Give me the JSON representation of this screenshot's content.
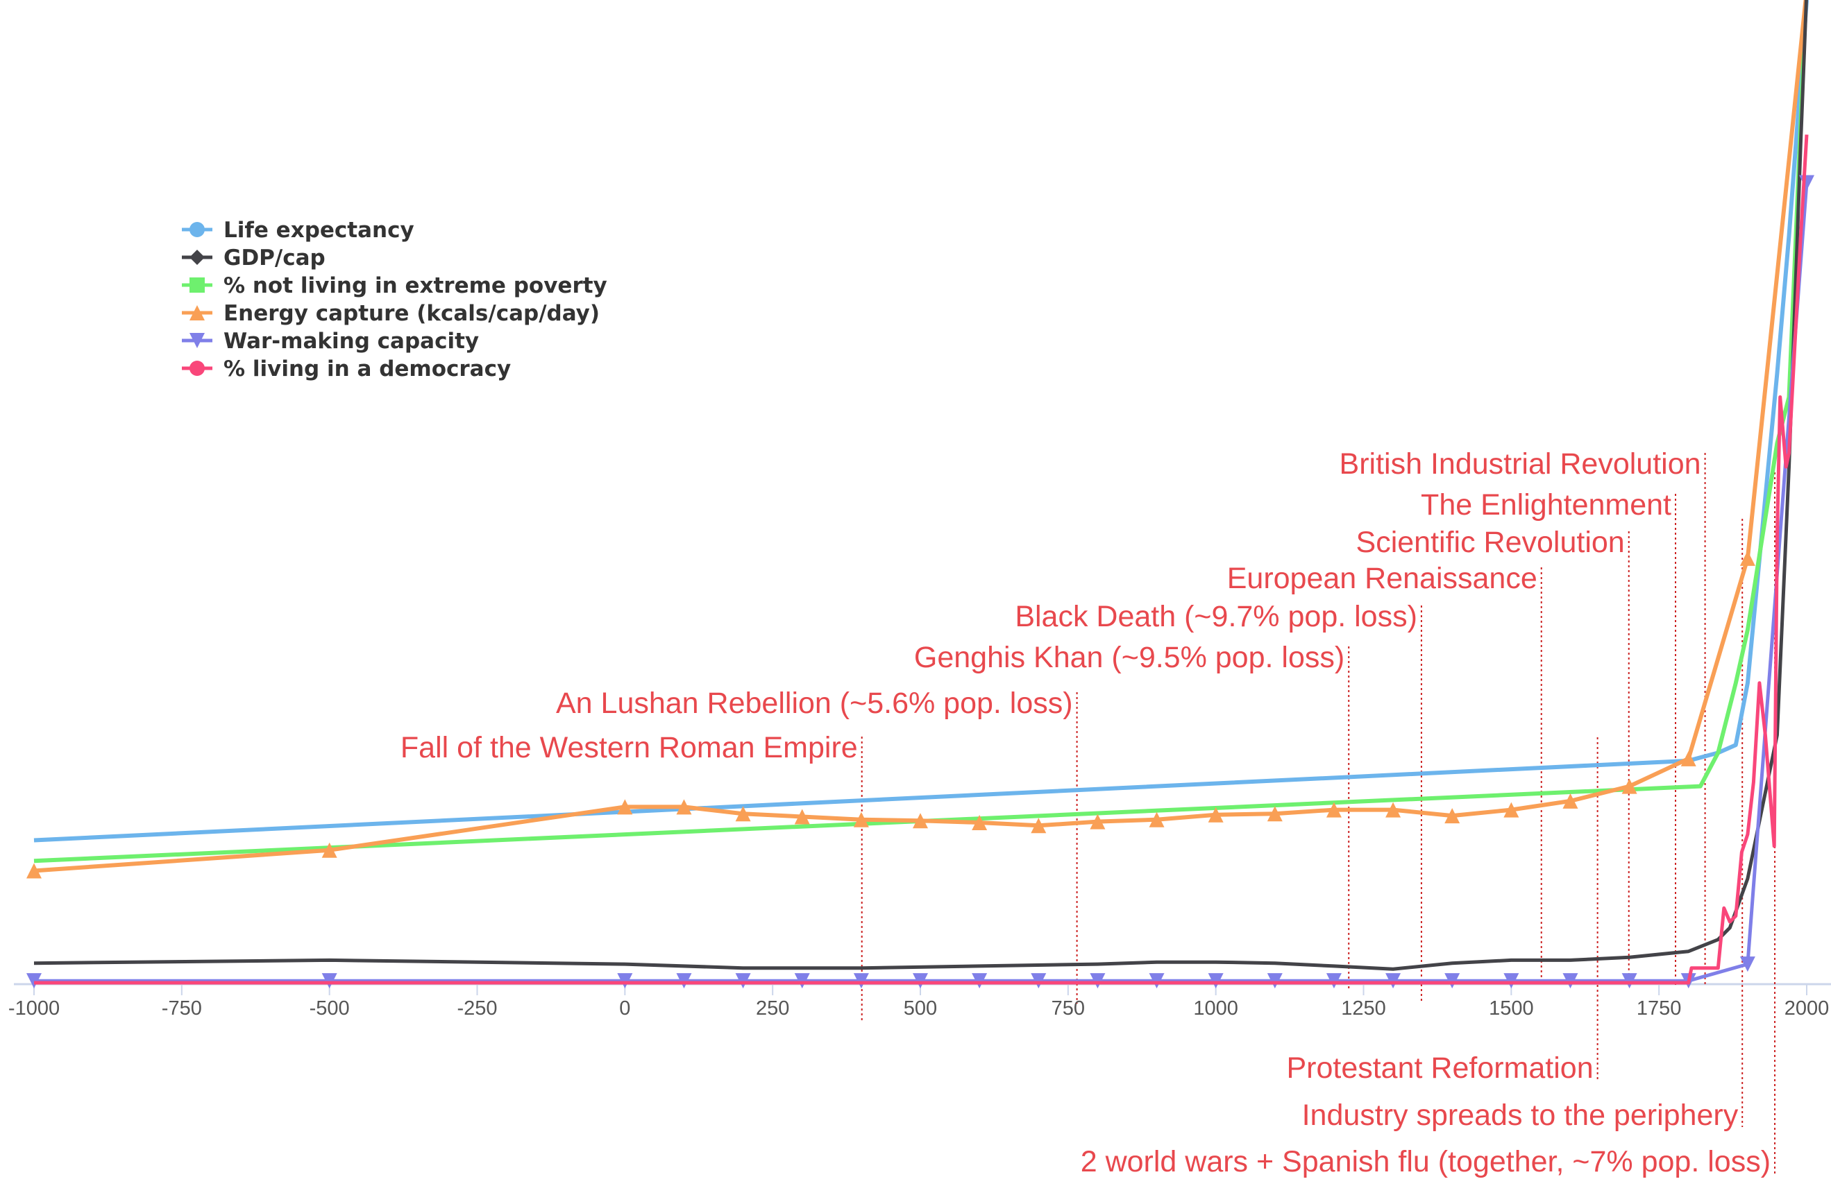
{
  "chart_data": {
    "type": "line",
    "title": "",
    "xlabel": "",
    "ylabel": "",
    "xlim": [
      -1000,
      2000
    ],
    "x_ticks": [
      -1000,
      -750,
      -500,
      -250,
      0,
      250,
      500,
      750,
      1000,
      1250,
      1500,
      1750,
      2000
    ],
    "y_scale_note": "relative, unlabeled",
    "ylim": [
      0,
      100
    ],
    "grid": false,
    "legend_position": "top-left",
    "series": [
      {
        "name": "Life expectancy",
        "color": "#6cb4ec",
        "marker": "circle",
        "x": [
          -1000,
          1800,
          1850,
          1880,
          1900,
          1950,
          1970,
          2000
        ],
        "y": [
          14.5,
          22.6,
          23.4,
          24.2,
          30.5,
          62,
          76,
          100
        ]
      },
      {
        "name": "GDP/cap",
        "color": "#434348",
        "marker": "diamond",
        "x": [
          -1000,
          -500,
          0,
          200,
          400,
          600,
          800,
          900,
          1000,
          1100,
          1200,
          1300,
          1400,
          1500,
          1600,
          1700,
          1800,
          1850,
          1870,
          1900,
          1950,
          1970,
          1990,
          2000
        ],
        "y": [
          2.0,
          2.3,
          1.9,
          1.5,
          1.5,
          1.7,
          1.9,
          2.1,
          2.1,
          2.0,
          1.7,
          1.4,
          2.0,
          2.3,
          2.3,
          2.6,
          3.2,
          4.4,
          5.6,
          10.6,
          25.2,
          52.5,
          85.7,
          101
        ]
      },
      {
        "name": "% not living in extreme poverty",
        "color": "#6ef06e",
        "marker": "square",
        "x": [
          -1000,
          1820,
          1850,
          1880,
          1900,
          1950,
          1970,
          1995
        ],
        "y": [
          12.4,
          20,
          23.4,
          30.5,
          35.9,
          54.9,
          59.6,
          94.7
        ]
      },
      {
        "name": "Energy capture (kcals/cap/day)",
        "color": "#f99f55",
        "marker": "triangle",
        "x": [
          -1000,
          -500,
          0,
          100,
          200,
          300,
          400,
          500,
          600,
          700,
          800,
          900,
          1000,
          1100,
          1200,
          1300,
          1400,
          1500,
          1600,
          1700,
          1800,
          1900,
          2000
        ],
        "y": [
          11.4,
          13.5,
          17.9,
          17.9,
          17.2,
          16.9,
          16.6,
          16.5,
          16.3,
          16.0,
          16.4,
          16.6,
          17.1,
          17.2,
          17.6,
          17.6,
          17.0,
          17.6,
          18.5,
          20.0,
          22.8,
          43.2,
          101
        ]
      },
      {
        "name": "War-making capacity",
        "color": "#7f7fe8",
        "marker": "triangle-down",
        "x": [
          -1000,
          -500,
          0,
          100,
          200,
          300,
          400,
          500,
          600,
          700,
          800,
          900,
          1000,
          1100,
          1200,
          1300,
          1400,
          1500,
          1600,
          1700,
          1800,
          1900,
          2000
        ],
        "y": [
          0.2,
          0.2,
          0.2,
          0.2,
          0.2,
          0.2,
          0.2,
          0.2,
          0.2,
          0.2,
          0.2,
          0.2,
          0.2,
          0.2,
          0.2,
          0.2,
          0.2,
          0.2,
          0.2,
          0.2,
          0.2,
          1.9,
          81.4
        ]
      },
      {
        "name": "% living in a democracy",
        "color": "#f9467a",
        "marker": "circle",
        "x": [
          -1000,
          1800,
          1805,
          1850,
          1860,
          1870,
          1880,
          1890,
          1900,
          1910,
          1920,
          1930,
          1945,
          1950,
          1955,
          1965,
          1970,
          1990,
          2000
        ],
        "y": [
          0,
          0,
          1.5,
          1.5,
          7.6,
          6.2,
          6.8,
          13.3,
          15.1,
          20.4,
          30.5,
          25.2,
          13.9,
          45.4,
          59.6,
          52.5,
          53.9,
          76.2,
          86.3
        ]
      }
    ],
    "annotation_color": "#e8484d",
    "annotations": [
      {
        "label": "Fall of the Western Roman Empire",
        "x": 401
      },
      {
        "label": "An Lushan Rebellion (~5.6% pop. loss)",
        "x": 765
      },
      {
        "label": "Genghis Khan (~9.5% pop. loss)",
        "x": 1225
      },
      {
        "label": "Black Death (~9.7% pop. loss)",
        "x": 1348
      },
      {
        "label": "European Renaissance",
        "x": 1551
      },
      {
        "label": "Scientific Revolution",
        "x": 1699
      },
      {
        "label": "The Enlightenment",
        "x": 1778
      },
      {
        "label": "British Industrial Revolution",
        "x": 1828
      },
      {
        "label": "Protestant Reformation",
        "x": 1646
      },
      {
        "label": "Industry spreads to the periphery",
        "x": 1891
      },
      {
        "label": "2 world wars + Spanish flu (together, ~7%  pop. loss)",
        "x": 1946
      }
    ]
  }
}
